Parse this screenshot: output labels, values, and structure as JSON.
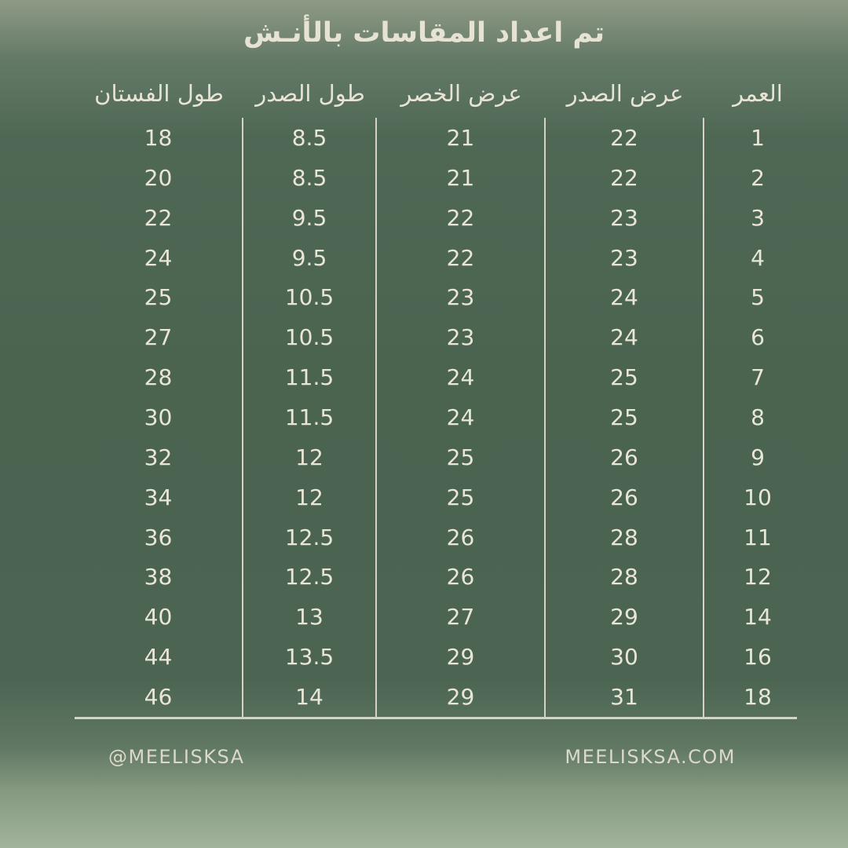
{
  "title": "تم اعداد المقاسات بالأنـش",
  "table": {
    "columns": [
      {
        "id": "dress_length",
        "label": "طول الفستان",
        "values": [
          "18",
          "20",
          "22",
          "24",
          "25",
          "27",
          "28",
          "30",
          "32",
          "34",
          "36",
          "38",
          "40",
          "44",
          "46"
        ]
      },
      {
        "id": "chest_length",
        "label": "طول الصدر",
        "values": [
          "8.5",
          "8.5",
          "9.5",
          "9.5",
          "10.5",
          "10.5",
          "11.5",
          "11.5",
          "12",
          "12",
          "12.5",
          "12.5",
          "13",
          "13.5",
          "14"
        ]
      },
      {
        "id": "waist_width",
        "label": "عرض الخصر",
        "values": [
          "21",
          "21",
          "22",
          "22",
          "23",
          "23",
          "24",
          "24",
          "25",
          "25",
          "26",
          "26",
          "27",
          "29",
          "29"
        ]
      },
      {
        "id": "chest_width",
        "label": "عرض الصدر",
        "values": [
          "22",
          "22",
          "23",
          "23",
          "24",
          "24",
          "25",
          "25",
          "26",
          "26",
          "28",
          "28",
          "29",
          "30",
          "31"
        ]
      },
      {
        "id": "age",
        "label": "العمر",
        "values": [
          "1",
          "2",
          "3",
          "4",
          "5",
          "6",
          "7",
          "8",
          "9",
          "10",
          "11",
          "12",
          "14",
          "16",
          "18"
        ]
      }
    ]
  },
  "footer": {
    "handle": "@MEELISKSA",
    "website": "MEELISKSA.COM"
  },
  "colors": {
    "background_mid": "#4a6450",
    "background_top": "#8e9a85",
    "background_bottom": "#a1b49b",
    "text_cream": "#e9e6d7",
    "line_cream": "#d6d3c4"
  },
  "chart_data": {
    "type": "table",
    "title": "تم اعداد المقاسات بالأنـش",
    "title_en": "Measurements prepared in inches",
    "units": "inch",
    "columns_rtl_reading_order": [
      "العمر",
      "عرض الصدر",
      "عرض الخصر",
      "طول الصدر",
      "طول الفستان"
    ],
    "columns_en": [
      "age",
      "chest_width",
      "waist_width",
      "chest_length",
      "dress_length"
    ],
    "rows": [
      [
        1,
        22,
        21,
        8.5,
        18
      ],
      [
        2,
        22,
        21,
        8.5,
        20
      ],
      [
        3,
        23,
        22,
        9.5,
        22
      ],
      [
        4,
        23,
        22,
        9.5,
        24
      ],
      [
        5,
        24,
        23,
        10.5,
        25
      ],
      [
        6,
        24,
        23,
        10.5,
        27
      ],
      [
        7,
        25,
        24,
        11.5,
        28
      ],
      [
        8,
        25,
        24,
        11.5,
        30
      ],
      [
        9,
        26,
        25,
        12,
        32
      ],
      [
        10,
        26,
        25,
        12,
        34
      ],
      [
        11,
        28,
        26,
        12.5,
        36
      ],
      [
        12,
        28,
        26,
        12.5,
        38
      ],
      [
        14,
        29,
        27,
        13,
        40
      ],
      [
        16,
        30,
        29,
        13.5,
        44
      ],
      [
        18,
        31,
        29,
        14,
        46
      ]
    ],
    "legend_position": "none",
    "grid": "column-dividers-and-bottom-rule"
  }
}
